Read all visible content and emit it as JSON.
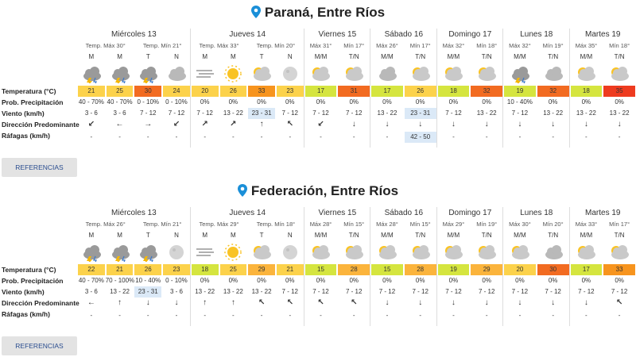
{
  "row_labels": [
    "Temperatura (°C)",
    "Prob. Precipitación",
    "Viento (km/h)",
    "Dirección Predominante",
    "Ráfagas (km/h)"
  ],
  "button": "REFERENCIAS",
  "locations": [
    {
      "name": "Paraná, Entre Ríos",
      "days": [
        {
          "day": "Miércoles 13",
          "max": "Temp. Máx 30°",
          "min": "Temp. Mín 21°",
          "slots": [
            "M",
            "M",
            "T",
            "N"
          ],
          "temperature": [
            21,
            25,
            30,
            24
          ],
          "precipitation": [
            "40 - 70%",
            "40 - 70%",
            "0 - 10%",
            "0 - 10%"
          ],
          "wind": [
            "3 - 6",
            "3 - 6",
            "7 - 12",
            "7 - 12"
          ],
          "direction": [
            "↙",
            "←",
            "→",
            "↙"
          ],
          "gusts": [
            "-",
            "-",
            "-",
            "-"
          ]
        },
        {
          "day": "Jueves 14",
          "max": "Temp. Máx 33°",
          "min": "Temp. Mín 20°",
          "slots": [
            "M",
            "M",
            "T",
            "N"
          ],
          "temperature": [
            20,
            26,
            33,
            23
          ],
          "precipitation": [
            "0%",
            "0%",
            "0%",
            "0%"
          ],
          "wind": [
            "7 - 12",
            "13 - 22",
            "23 - 31",
            "7 - 12"
          ],
          "direction": [
            "↗",
            "↗",
            "↑",
            "↖"
          ],
          "gusts": [
            "-",
            "-",
            "-",
            "-"
          ]
        },
        {
          "day": "Viernes 15",
          "max": "Máx 31°",
          "min": "Mín 17°",
          "slots": [
            "M/M",
            "T/N"
          ],
          "temperature": [
            17,
            31
          ],
          "precipitation": [
            "0%",
            "0%"
          ],
          "wind": [
            "7 - 12",
            "7 - 12"
          ],
          "direction": [
            "↙",
            "↓"
          ],
          "gusts": [
            "-",
            "-"
          ]
        },
        {
          "day": "Sábado 16",
          "max": "Máx 26°",
          "min": "Mín 17°",
          "slots": [
            "M/M",
            "T/N"
          ],
          "temperature": [
            17,
            26
          ],
          "precipitation": [
            "0%",
            "0%"
          ],
          "wind": [
            "13 - 22",
            "23 - 31"
          ],
          "direction": [
            "↓",
            "↓"
          ],
          "gusts": [
            "-",
            "42 - 50"
          ]
        },
        {
          "day": "Domingo 17",
          "max": "Máx 32°",
          "min": "Mín 18°",
          "slots": [
            "M/M",
            "T/N"
          ],
          "temperature": [
            18,
            32
          ],
          "precipitation": [
            "0%",
            "0%"
          ],
          "wind": [
            "7 - 12",
            "13 - 22"
          ],
          "direction": [
            "↓",
            "↓"
          ],
          "gusts": [
            "-",
            "-"
          ]
        },
        {
          "day": "Lunes 18",
          "max": "Máx 32°",
          "min": "Mín 19°",
          "slots": [
            "M/M",
            "T/N"
          ],
          "temperature": [
            19,
            32
          ],
          "precipitation": [
            "10 - 40%",
            "0%"
          ],
          "wind": [
            "7 - 12",
            "13 - 22"
          ],
          "direction": [
            "↓",
            "↓"
          ],
          "gusts": [
            "-",
            "-"
          ]
        },
        {
          "day": "Martes 19",
          "max": "Máx 35°",
          "min": "Mín 18°",
          "slots": [
            "M/M",
            "T/N"
          ],
          "temperature": [
            18,
            35
          ],
          "precipitation": [
            "0%",
            "0%"
          ],
          "wind": [
            "13 - 22",
            "13 - 22"
          ],
          "direction": [
            "↓",
            "↓"
          ],
          "gusts": [
            "-",
            "-"
          ]
        }
      ]
    },
    {
      "name": "Federación, Entre Ríos",
      "days": [
        {
          "day": "Miércoles 13",
          "max": "Temp. Máx 26°",
          "min": "Temp. Mín 21°",
          "slots": [
            "M",
            "M",
            "T",
            "N"
          ],
          "temperature": [
            22,
            21,
            26,
            23
          ],
          "precipitation": [
            "40 - 70%",
            "70 - 100%",
            "10 - 40%",
            "0 - 10%"
          ],
          "wind": [
            "3 - 6",
            "13 - 22",
            "23 - 31",
            "3 - 6"
          ],
          "direction": [
            "←",
            "↑",
            "↓",
            "↓"
          ],
          "gusts": [
            "-",
            "-",
            "-",
            "-"
          ]
        },
        {
          "day": "Jueves 14",
          "max": "Temp. Máx 29°",
          "min": "Temp. Mín 18°",
          "slots": [
            "M",
            "M",
            "T",
            "N"
          ],
          "temperature": [
            18,
            25,
            29,
            21
          ],
          "precipitation": [
            "0%",
            "0%",
            "0%",
            "0%"
          ],
          "wind": [
            "13 - 22",
            "13 - 22",
            "13 - 22",
            "7 - 12"
          ],
          "direction": [
            "↑",
            "↑",
            "↖",
            "↖"
          ],
          "gusts": [
            "-",
            "-",
            "-",
            "-"
          ]
        },
        {
          "day": "Viernes 15",
          "max": "Máx 28°",
          "min": "Mín 15°",
          "slots": [
            "M/M",
            "T/N"
          ],
          "temperature": [
            15,
            28
          ],
          "precipitation": [
            "0%",
            "0%"
          ],
          "wind": [
            "7 - 12",
            "7 - 12"
          ],
          "direction": [
            "↖",
            "↖"
          ],
          "gusts": [
            "-",
            "-"
          ]
        },
        {
          "day": "Sábado 16",
          "max": "Máx 28°",
          "min": "Mín 15°",
          "slots": [
            "M/M",
            "T/N"
          ],
          "temperature": [
            15,
            28
          ],
          "precipitation": [
            "0%",
            "0%"
          ],
          "wind": [
            "7 - 12",
            "7 - 12"
          ],
          "direction": [
            "↓",
            "↓"
          ],
          "gusts": [
            "-",
            "-"
          ]
        },
        {
          "day": "Domingo 17",
          "max": "Máx 29°",
          "min": "Mín 19°",
          "slots": [
            "M/M",
            "T/N"
          ],
          "temperature": [
            19,
            29
          ],
          "precipitation": [
            "0%",
            "0%"
          ],
          "wind": [
            "7 - 12",
            "7 - 12"
          ],
          "direction": [
            "↓",
            "↓"
          ],
          "gusts": [
            "-",
            "-"
          ]
        },
        {
          "day": "Lunes 18",
          "max": "Máx 30°",
          "min": "Mín 20°",
          "slots": [
            "M/M",
            "T/N"
          ],
          "temperature": [
            20,
            30
          ],
          "precipitation": [
            "0%",
            "0%"
          ],
          "wind": [
            "7 - 12",
            "7 - 12"
          ],
          "direction": [
            "↓",
            "↓"
          ],
          "gusts": [
            "-",
            "-"
          ]
        },
        {
          "day": "Martes 19",
          "max": "Máx 33°",
          "min": "Mín 17°",
          "slots": [
            "M/M",
            "T/N"
          ],
          "temperature": [
            17,
            33
          ],
          "precipitation": [
            "0%",
            "0%"
          ],
          "wind": [
            "7 - 12",
            "7 - 12"
          ],
          "direction": [
            "↓",
            "↖"
          ],
          "gusts": [
            "-",
            "-"
          ]
        }
      ]
    }
  ]
}
